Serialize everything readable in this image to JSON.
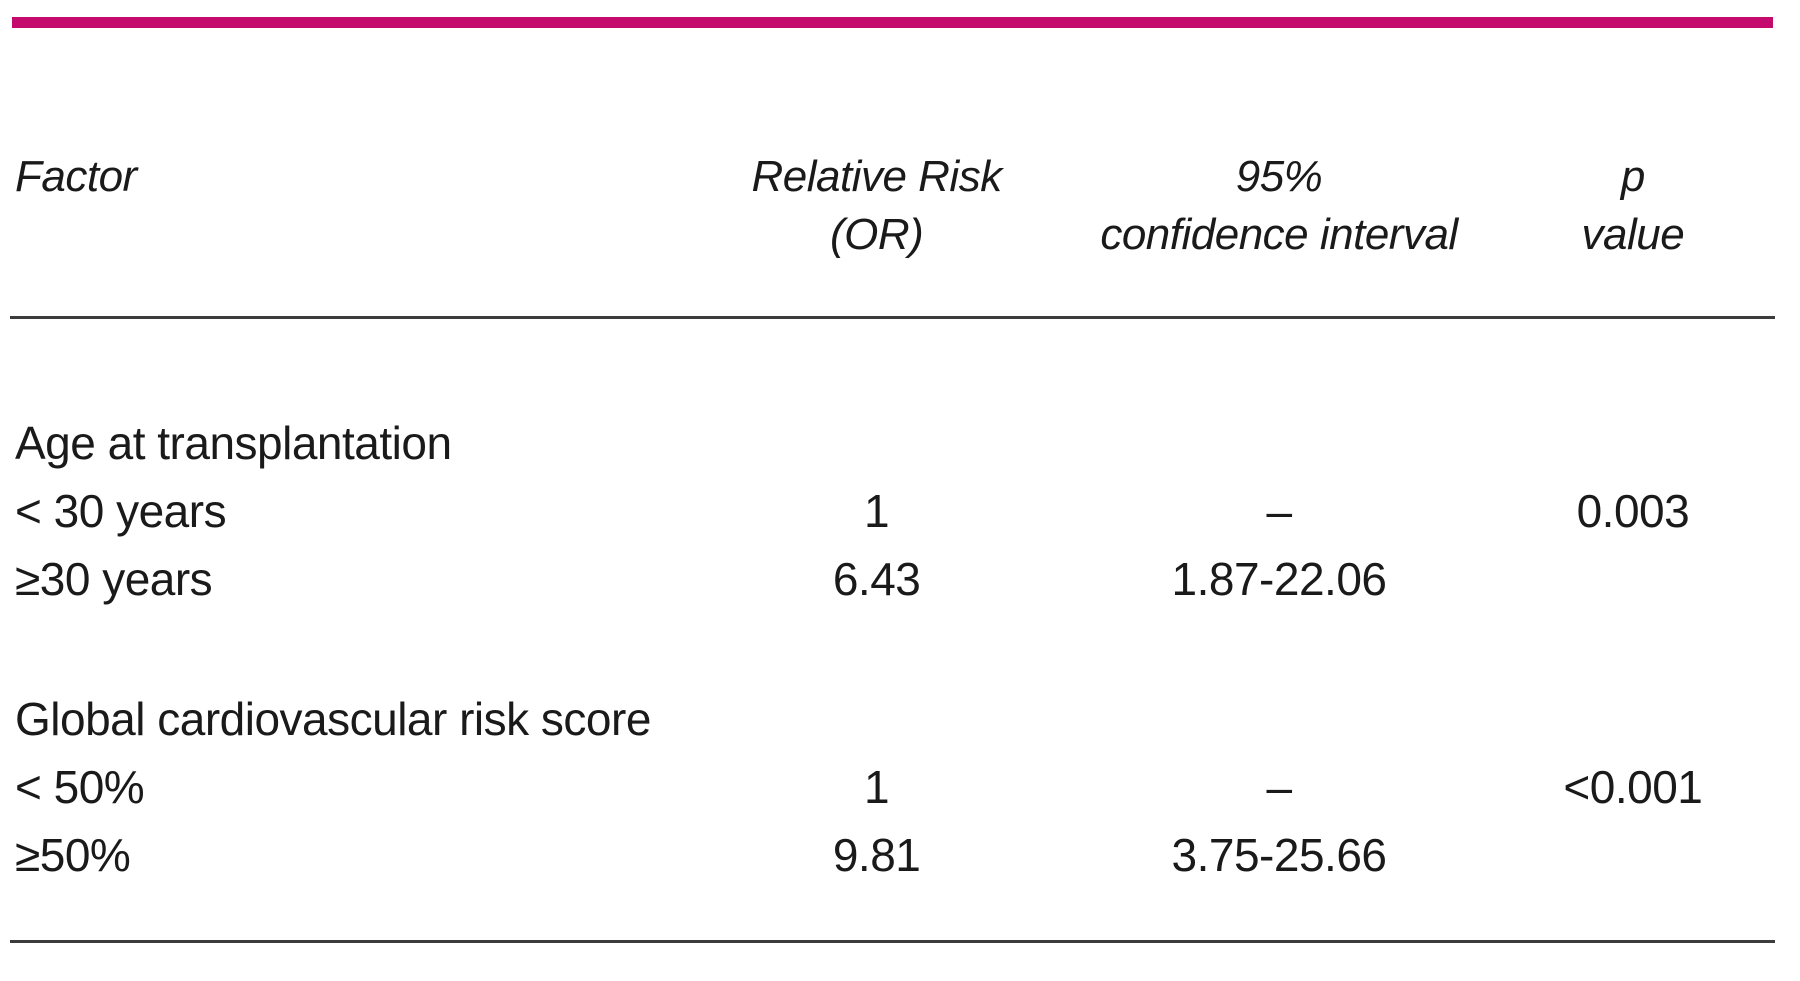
{
  "page": {
    "accent_color": "#c50a6e",
    "rule_color": "#3c3c3c",
    "text_color": "#1a1a1a"
  },
  "table": {
    "header": {
      "factor": "Factor",
      "relative_risk_line1": "Relative Risk",
      "relative_risk_line2": "(OR)",
      "confidence_interval_line1": "95%",
      "confidence_interval_line2": "confidence interval",
      "p_value_line1": "p",
      "p_value_line2": "value"
    },
    "sections": [
      {
        "title": "Age at transplantation",
        "rows": [
          {
            "factor": "< 30 years",
            "relative_risk": "1",
            "confidence_interval": "–",
            "p_value": "0.003"
          },
          {
            "factor": "≥30 years",
            "relative_risk": "6.43",
            "confidence_interval": "1.87-22.06",
            "p_value": ""
          }
        ]
      },
      {
        "title": "Global cardiovascular risk score",
        "rows": [
          {
            "factor": "< 50%",
            "relative_risk": "1",
            "confidence_interval": "–",
            "p_value": "<0.001"
          },
          {
            "factor": "≥50%",
            "relative_risk": "9.81",
            "confidence_interval": "3.75-25.66",
            "p_value": ""
          }
        ]
      }
    ]
  }
}
